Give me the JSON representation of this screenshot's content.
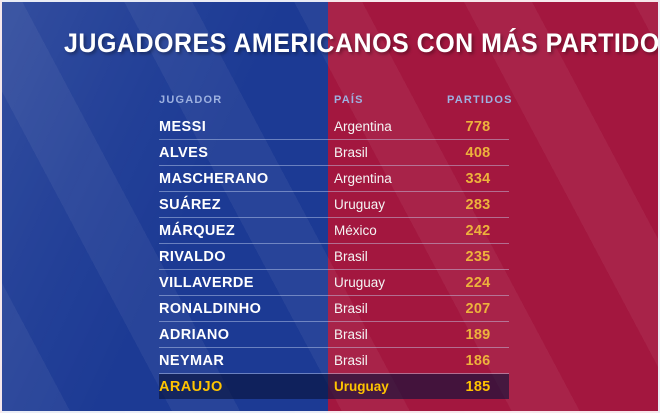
{
  "title": "JUGADORES AMERICANOS CON MÁS PARTIDOS",
  "table": {
    "headers": [
      "JUGADOR",
      "PAÍS",
      "PARTIDOS"
    ],
    "rows": [
      {
        "player": "MESSI",
        "country": "Argentina",
        "matches": "778",
        "highlight": false
      },
      {
        "player": "ALVES",
        "country": "Brasil",
        "matches": "408",
        "highlight": false
      },
      {
        "player": "MASCHERANO",
        "country": "Argentina",
        "matches": "334",
        "highlight": false
      },
      {
        "player": "SUÁREZ",
        "country": "Uruguay",
        "matches": "283",
        "highlight": false
      },
      {
        "player": "MÁRQUEZ",
        "country": "México",
        "matches": "242",
        "highlight": false
      },
      {
        "player": "RIVALDO",
        "country": "Brasil",
        "matches": "235",
        "highlight": false
      },
      {
        "player": "VILLAVERDE",
        "country": "Uruguay",
        "matches": "224",
        "highlight": false
      },
      {
        "player": "RONALDINHO",
        "country": "Brasil",
        "matches": "207",
        "highlight": false
      },
      {
        "player": "ADRIANO",
        "country": "Brasil",
        "matches": "189",
        "highlight": false
      },
      {
        "player": "NEYMAR",
        "country": "Brasil",
        "matches": "186",
        "highlight": false
      },
      {
        "player": "ARAUJO",
        "country": "Uruguay",
        "matches": "185",
        "highlight": true
      }
    ]
  },
  "colors": {
    "blue": "#1c3a94",
    "red": "#a3173f",
    "gold": "#edb23c",
    "highlight": "#ffc400",
    "header": "#9db1e0"
  },
  "chart_data": {
    "type": "table",
    "title": "JUGADORES AMERICANOS CON MÁS PARTIDOS",
    "columns": [
      "JUGADOR",
      "PAÍS",
      "PARTIDOS"
    ],
    "rows": [
      [
        "MESSI",
        "Argentina",
        778
      ],
      [
        "ALVES",
        "Brasil",
        408
      ],
      [
        "MASCHERANO",
        "Argentina",
        334
      ],
      [
        "SUÁREZ",
        "Uruguay",
        283
      ],
      [
        "MÁRQUEZ",
        "México",
        242
      ],
      [
        "RIVALDO",
        "Brasil",
        235
      ],
      [
        "VILLAVERDE",
        "Uruguay",
        224
      ],
      [
        "RONALDINHO",
        "Brasil",
        207
      ],
      [
        "ADRIANO",
        "Brasil",
        189
      ],
      [
        "NEYMAR",
        "Brasil",
        186
      ],
      [
        "ARAUJO",
        "Uruguay",
        185
      ]
    ],
    "highlighted_row": "ARAUJO",
    "layout": {
      "background_split": "blue-left-red-right",
      "value_color": "gold"
    }
  }
}
